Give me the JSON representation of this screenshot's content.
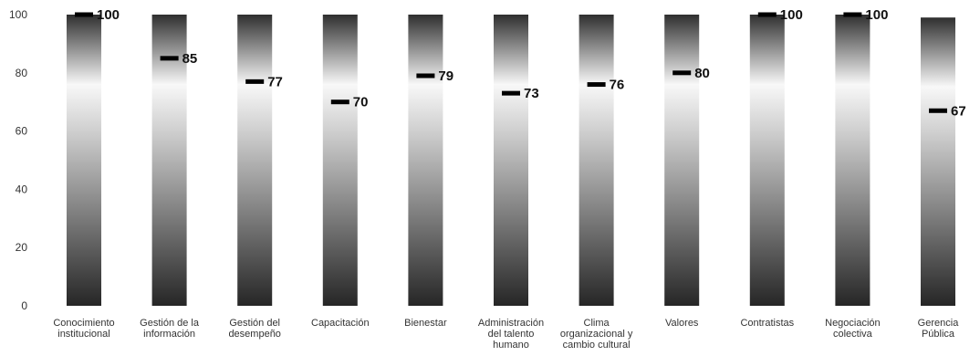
{
  "chart_data": {
    "type": "bar",
    "categories": [
      [
        "Conocimiento",
        "institucional"
      ],
      [
        "Gestión de la",
        "información"
      ],
      [
        "Gestión del",
        "desempeño"
      ],
      [
        "Capacitación"
      ],
      [
        "Bienestar"
      ],
      [
        "Administración",
        "del talento",
        "humano"
      ],
      [
        "Clima",
        "organizacional y",
        "cambio cultural"
      ],
      [
        "Valores"
      ],
      [
        "Contratistas"
      ],
      [
        "Negociación",
        "colectiva"
      ],
      [
        "Gerencia",
        "Pública"
      ]
    ],
    "values": [
      100,
      85,
      77,
      70,
      79,
      73,
      76,
      80,
      100,
      100,
      67
    ],
    "value_labels": [
      "100",
      "85",
      "77",
      "70",
      "79",
      "73",
      "76",
      "80",
      "100",
      "100",
      "67"
    ],
    "bar_full_values": [
      100,
      100,
      100,
      100,
      100,
      100,
      100,
      100,
      100,
      100,
      99
    ],
    "ylim": [
      0,
      100
    ],
    "yticks": [
      "0",
      "20",
      "40",
      "60",
      "80",
      "100"
    ],
    "title": "",
    "xlabel": "",
    "ylabel": "",
    "grid": false,
    "legend": "none",
    "colors": {
      "bar_dark": "#2a2a2a",
      "bar_light": "#f7f7f7",
      "marker": "#000000",
      "text": "#333333"
    }
  }
}
